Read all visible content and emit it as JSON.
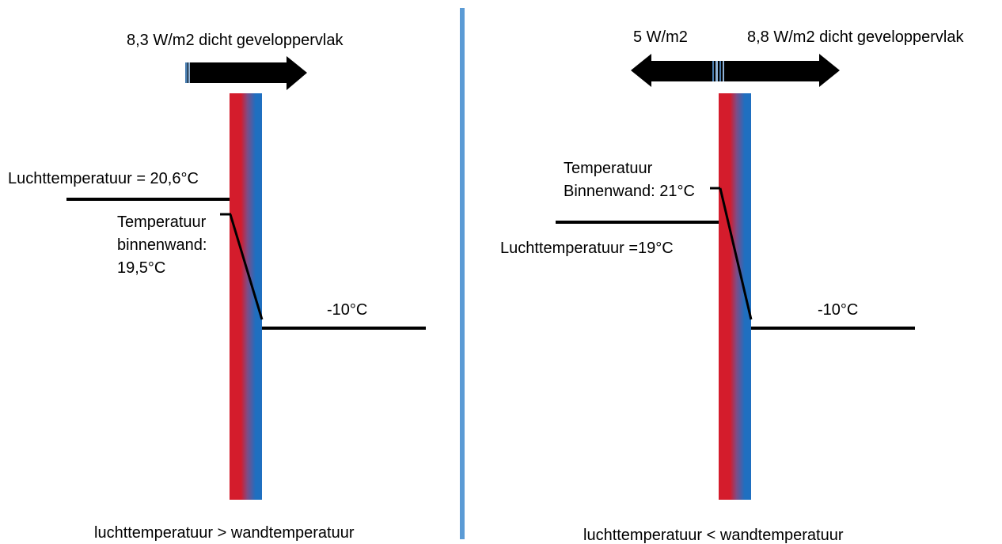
{
  "colors": {
    "divider": "#5B9BD5",
    "wall_warm": "#E0202A",
    "wall_cold": "#1F6FC0",
    "lines": "#000000",
    "arrow": "#000000",
    "arrow_stripe": "#4A7EB0"
  },
  "left_panel": {
    "flux_label": "8,3 W/m2 dicht geveloppervlak",
    "air_temp_label": "Luchttemperatuur = 20,6°C",
    "wall_temp_line1": "Temperatuur",
    "wall_temp_line2": "binnenwand:",
    "wall_temp_line3": "19,5°C",
    "outside_temp_label": "-10°C",
    "caption": "luchttemperatuur > wandtemperatuur"
  },
  "right_panel": {
    "flux_left_label": "5 W/m2",
    "flux_right_label": "8,8 W/m2 dicht geveloppervlak",
    "wall_temp_line1": "Temperatuur",
    "wall_temp_line2": "Binnenwand: 21°C",
    "air_temp_label": "Luchttemperatuur =19°C",
    "outside_temp_label": "-10°C",
    "caption": "luchttemperatuur < wandtemperatuur"
  }
}
